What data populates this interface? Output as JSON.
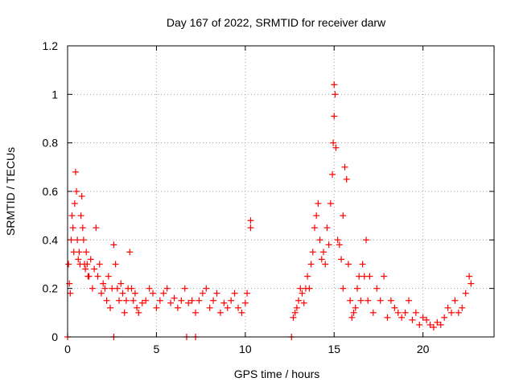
{
  "chart_data": {
    "type": "scatter",
    "title": "Day 167 of 2022, SRMTID for receiver darw",
    "xlabel": "GPS time / hours",
    "ylabel": "SRMTID / TECUs",
    "xlim": [
      0,
      24
    ],
    "ylim": [
      0,
      1.2
    ],
    "xticks": [
      0,
      5,
      10,
      15,
      20
    ],
    "xtick_labels": [
      "0",
      "5",
      "10",
      "15",
      "20"
    ],
    "yticks": [
      0,
      0.2,
      0.4,
      0.6,
      0.8,
      1.0,
      1.2
    ],
    "ytick_labels": [
      "0",
      "0.2",
      "0.4",
      "0.6",
      "0.8",
      "1",
      "1.2"
    ],
    "grid": true,
    "marker": "+",
    "color": "#ff0000",
    "series": [
      {
        "name": "SRMTID",
        "x": [
          0.05,
          0.1,
          0.15,
          0.2,
          0.25,
          0.3,
          0.35,
          0.4,
          0.45,
          0.5,
          0.55,
          0.6,
          0.65,
          0.7,
          0.75,
          0.8,
          0.85,
          0.9,
          0.95,
          1.0,
          1.05,
          1.1,
          1.15,
          1.2,
          1.3,
          1.4,
          1.5,
          1.6,
          1.7,
          1.8,
          1.9,
          2.0,
          2.1,
          2.2,
          2.3,
          2.4,
          2.5,
          2.6,
          2.7,
          2.8,
          2.9,
          3.0,
          3.1,
          3.2,
          3.3,
          3.4,
          3.5,
          3.6,
          3.7,
          3.8,
          3.9,
          4.0,
          4.2,
          4.4,
          4.6,
          4.8,
          5.0,
          5.2,
          5.4,
          5.6,
          5.8,
          6.0,
          6.2,
          6.4,
          6.6,
          6.8,
          7.0,
          7.2,
          7.4,
          7.6,
          7.8,
          8.0,
          8.2,
          8.4,
          8.6,
          8.8,
          9.0,
          9.2,
          9.4,
          9.6,
          9.8,
          10.0,
          10.1,
          10.3,
          10.3,
          12.7,
          12.8,
          12.9,
          13.0,
          13.1,
          13.2,
          13.3,
          13.4,
          13.5,
          13.6,
          13.7,
          13.8,
          13.9,
          14.0,
          14.1,
          14.2,
          14.3,
          14.4,
          14.5,
          14.6,
          14.7,
          14.8,
          14.9,
          14.95,
          15.0,
          15.0,
          15.05,
          15.1,
          15.2,
          15.3,
          15.4,
          15.5,
          15.5,
          15.6,
          15.7,
          15.8,
          15.9,
          16.0,
          16.1,
          16.2,
          16.3,
          16.4,
          16.5,
          16.6,
          16.7,
          16.8,
          16.9,
          17.0,
          17.2,
          17.4,
          17.6,
          17.8,
          18.0,
          18.2,
          18.4,
          18.6,
          18.8,
          19.0,
          19.2,
          19.4,
          19.6,
          19.8,
          20.0,
          20.2,
          20.4,
          20.6,
          20.8,
          21.0,
          21.2,
          21.4,
          21.6,
          21.8,
          22.0,
          22.2,
          22.4,
          22.6,
          22.7,
          0.0,
          2.6,
          6.7,
          7.2,
          12.6
        ],
        "y": [
          0.3,
          0.22,
          0.18,
          0.4,
          0.5,
          0.45,
          0.35,
          0.55,
          0.68,
          0.6,
          0.4,
          0.32,
          0.35,
          0.3,
          0.5,
          0.58,
          0.45,
          0.4,
          0.3,
          0.28,
          0.35,
          0.3,
          0.25,
          0.25,
          0.32,
          0.2,
          0.28,
          0.45,
          0.25,
          0.3,
          0.18,
          0.22,
          0.2,
          0.15,
          0.25,
          0.12,
          0.2,
          0.38,
          0.3,
          0.2,
          0.15,
          0.22,
          0.18,
          0.1,
          0.15,
          0.2,
          0.35,
          0.2,
          0.15,
          0.18,
          0.12,
          0.1,
          0.14,
          0.15,
          0.2,
          0.18,
          0.12,
          0.15,
          0.18,
          0.2,
          0.14,
          0.16,
          0.12,
          0.15,
          0.2,
          0.14,
          0.15,
          0.1,
          0.15,
          0.18,
          0.2,
          0.12,
          0.15,
          0.18,
          0.1,
          0.14,
          0.12,
          0.15,
          0.18,
          0.12,
          0.1,
          0.14,
          0.18,
          0.48,
          0.45,
          0.08,
          0.1,
          0.12,
          0.15,
          0.2,
          0.18,
          0.14,
          0.2,
          0.25,
          0.2,
          0.3,
          0.35,
          0.45,
          0.5,
          0.55,
          0.4,
          0.32,
          0.35,
          0.3,
          0.45,
          0.38,
          0.55,
          0.67,
          0.8,
          1.04,
          0.91,
          1.0,
          0.78,
          0.4,
          0.38,
          0.32,
          0.2,
          0.5,
          0.7,
          0.65,
          0.3,
          0.15,
          0.08,
          0.1,
          0.12,
          0.2,
          0.25,
          0.15,
          0.3,
          0.25,
          0.4,
          0.15,
          0.25,
          0.1,
          0.2,
          0.15,
          0.25,
          0.08,
          0.15,
          0.12,
          0.1,
          0.08,
          0.1,
          0.15,
          0.07,
          0.1,
          0.05,
          0.08,
          0.07,
          0.05,
          0.04,
          0.06,
          0.05,
          0.08,
          0.12,
          0.1,
          0.15,
          0.1,
          0.12,
          0.18,
          0.25,
          0.22,
          0.0,
          0.0,
          0.0,
          0.0,
          0.0
        ]
      }
    ]
  }
}
